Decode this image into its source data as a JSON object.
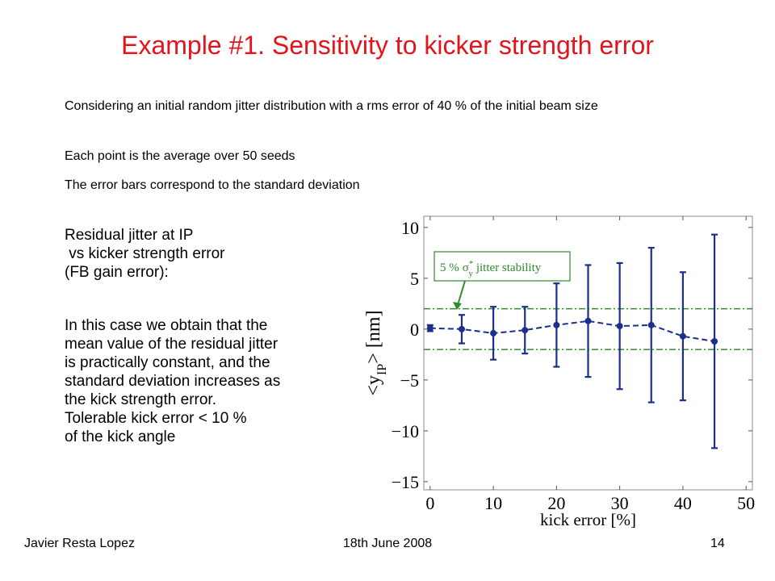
{
  "title": "Example #1. Sensitivity to kicker strength error",
  "bullets": [
    "Considering an initial random jitter distribution with a rms error of 40 % of the initial beam size",
    "Each point is the average over 50 seeds",
    "The error bars correspond to the standard deviation"
  ],
  "left_text": {
    "block1": [
      "Residual jitter at IP",
      " vs kicker strength error",
      "(FB gain error):"
    ],
    "block2": [
      "In this case we obtain that the",
      "mean value of the residual jitter",
      "is practically constant, and the",
      "standard deviation increases as",
      "the kick strength error.",
      "Tolerable kick error < 10 %",
      "of the kick angle"
    ]
  },
  "footer": {
    "author": "Javier Resta Lopez",
    "date": "18th June 2008",
    "page": "14"
  },
  "chart_data": {
    "type": "errorbar",
    "x_label": "kick error [%]",
    "y_label": {
      "prefix": "<y",
      "sub": "IP",
      "suffix": "> [nm]"
    },
    "x": [
      0,
      5,
      10,
      15,
      20,
      25,
      30,
      35,
      40,
      45
    ],
    "series": [
      {
        "color": "#1b2f8c",
        "values": [
          0.1,
          0.0,
          -0.4,
          -0.1,
          0.4,
          0.8,
          0.3,
          0.4,
          -0.7,
          -1.2
        ],
        "errors": [
          0.3,
          1.4,
          2.6,
          2.3,
          4.1,
          5.5,
          6.2,
          7.6,
          6.3,
          10.5
        ]
      }
    ],
    "hlines": [
      2,
      -2
    ],
    "hline_color": "#2e8b2e",
    "annotation": {
      "prefix": "5 %",
      "symbol": "σ",
      "sup": "*",
      "sub": "y",
      "suffix": "jitter stability"
    },
    "xlim": [
      -1,
      51
    ],
    "ylim": [
      -15.8,
      11.1
    ],
    "xticks": [
      0,
      10,
      20,
      30,
      40,
      50
    ],
    "yticks": [
      10,
      5,
      0,
      {
        "value": -5,
        "label": "−5"
      },
      {
        "value": -10,
        "label": "−10"
      },
      {
        "value": -15,
        "label": "−15"
      }
    ]
  }
}
